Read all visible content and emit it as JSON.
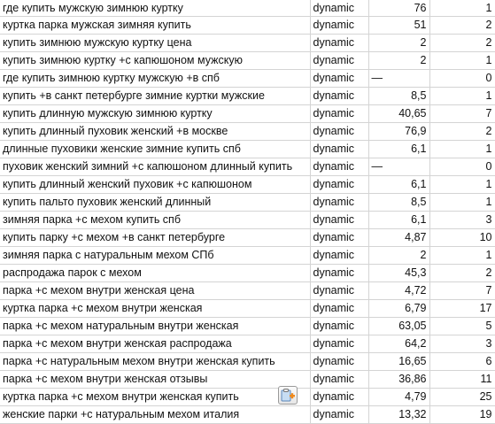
{
  "rows": [
    [
      "где купить мужскую зимнюю куртку",
      "dynamic",
      "76",
      "1"
    ],
    [
      "куртка парка мужская зимняя купить",
      "dynamic",
      "51",
      "2"
    ],
    [
      "купить зимнюю мужскую куртку цена",
      "dynamic",
      "2",
      "2"
    ],
    [
      "купить зимнюю куртку +с капюшоном мужскую",
      "dynamic",
      "2",
      "1"
    ],
    [
      "где купить зимнюю куртку мужскую +в спб",
      "dynamic",
      "—",
      "0"
    ],
    [
      "купить +в санкт петербурге зимние куртки мужские",
      "dynamic",
      "8,5",
      "1"
    ],
    [
      "купить длинную мужскую зимнюю куртку",
      "dynamic",
      "40,65",
      "7"
    ],
    [
      "купить длинный пуховик женский +в москве",
      "dynamic",
      "76,9",
      "2"
    ],
    [
      "длинные пуховики женские зимние купить спб",
      "dynamic",
      "6,1",
      "1"
    ],
    [
      "пуховик женский зимний +с капюшоном длинный купить",
      "dynamic",
      "—",
      "0"
    ],
    [
      "купить длинный женский пуховик +с капюшоном",
      "dynamic",
      "6,1",
      "1"
    ],
    [
      "купить пальто пуховик женский длинный",
      "dynamic",
      "8,5",
      "1"
    ],
    [
      "зимняя парка +с мехом купить спб",
      "dynamic",
      "6,1",
      "3"
    ],
    [
      "купить парку +с мехом +в санкт петербурге",
      "dynamic",
      "4,87",
      "10"
    ],
    [
      "зимняя парка с натуральным мехом СПб",
      "dynamic",
      "2",
      "1"
    ],
    [
      "распродажа парок с мехом",
      "dynamic",
      "45,3",
      "2"
    ],
    [
      "парка +с мехом внутри женская цена",
      "dynamic",
      "4,72",
      "7"
    ],
    [
      "куртка парка +с мехом внутри женская",
      "dynamic",
      "6,79",
      "17"
    ],
    [
      "парка +с мехом натуральным внутри женская",
      "dynamic",
      "63,05",
      "5"
    ],
    [
      "парка +с мехом внутри женская распродажа",
      "dynamic",
      "64,2",
      "3"
    ],
    [
      "парка +с натуральным мехом внутри женская купить",
      "dynamic",
      "16,65",
      "6"
    ],
    [
      "парка +с мехом внутри женская отзывы",
      "dynamic",
      "36,86",
      "11"
    ],
    [
      "куртка парка +с мехом внутри женская купить",
      "dynamic",
      "4,79",
      "25"
    ],
    [
      "женские парки +с натуральным мехом италия",
      "dynamic",
      "13,32",
      "19"
    ]
  ],
  "paste_options_icon": "paste-options-icon"
}
